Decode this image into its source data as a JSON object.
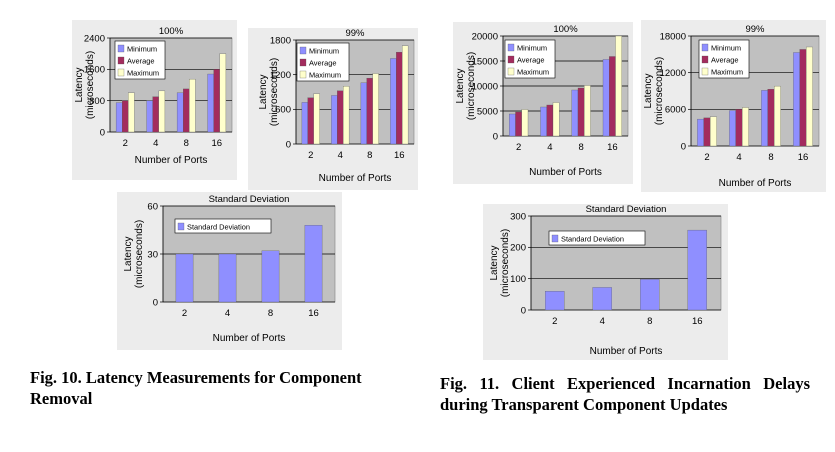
{
  "colors": {
    "plot_bg": "#c0c0c0",
    "outer_bg": "#ececec",
    "minimum": "#8f8fff",
    "average": "#a32c5e",
    "maximum": "#ffffcc",
    "stddev": "#8f8fff"
  },
  "captions": {
    "fig10": "Fig. 10. Latency Measurements for Component Removal",
    "fig11": "Fig. 11. Client Experienced Incarnation Delays during Transparent Component Updates"
  },
  "chart_data": [
    {
      "id": "fig10_100",
      "type": "bar",
      "title": "100%",
      "xlabel": "Number of Ports",
      "ylabel": "Latency (microseconds)",
      "ylabel_lines": [
        "Latency",
        "(microseconds)"
      ],
      "categories": [
        "2",
        "4",
        "8",
        "16"
      ],
      "ylim": [
        0,
        2400
      ],
      "yticks": [
        0,
        800,
        1600,
        2400
      ],
      "legend_position": "top-left",
      "series": [
        {
          "name": "Minimum",
          "values": [
            750,
            800,
            1000,
            1480
          ]
        },
        {
          "name": "Average",
          "values": [
            800,
            900,
            1100,
            1600
          ]
        },
        {
          "name": "Maximum",
          "values": [
            1000,
            1050,
            1350,
            2000
          ]
        }
      ]
    },
    {
      "id": "fig10_99",
      "type": "bar",
      "title": "99%",
      "xlabel": "Number of Ports",
      "ylabel": "Latency (microseconds)",
      "ylabel_lines": [
        "Latency",
        "(microseconds)"
      ],
      "categories": [
        "2",
        "4",
        "8",
        "16"
      ],
      "ylim": [
        0,
        1800
      ],
      "yticks": [
        0,
        600,
        1200,
        1800
      ],
      "legend_position": "top-left",
      "series": [
        {
          "name": "Minimum",
          "values": [
            720,
            840,
            1060,
            1480
          ]
        },
        {
          "name": "Average",
          "values": [
            800,
            920,
            1140,
            1590
          ]
        },
        {
          "name": "Maximum",
          "values": [
            870,
            1000,
            1220,
            1700
          ]
        }
      ]
    },
    {
      "id": "fig10_std",
      "type": "bar",
      "title": "Standard Deviation",
      "xlabel": "Number of Ports",
      "ylabel": "Latency (microseconds)",
      "ylabel_lines": [
        "Latency",
        "(microseconds)"
      ],
      "categories": [
        "2",
        "4",
        "8",
        "16"
      ],
      "ylim": [
        0,
        60
      ],
      "yticks": [
        0,
        30,
        60
      ],
      "legend_position": "top-left",
      "series": [
        {
          "name": "Standard Deviation",
          "values": [
            30,
            30,
            32,
            48
          ]
        }
      ]
    },
    {
      "id": "fig11_100",
      "type": "bar",
      "title": "100%",
      "xlabel": "Number of Ports",
      "ylabel": "Latency (microseconds)",
      "ylabel_lines": [
        "Latency",
        "(microseconds)"
      ],
      "categories": [
        "2",
        "4",
        "8",
        "16"
      ],
      "ylim": [
        0,
        20000
      ],
      "yticks": [
        0,
        5000,
        10000,
        15000,
        20000
      ],
      "legend_position": "top-left",
      "series": [
        {
          "name": "Minimum",
          "values": [
            4400,
            5800,
            9200,
            15300
          ]
        },
        {
          "name": "Average",
          "values": [
            4800,
            6200,
            9600,
            15900
          ]
        },
        {
          "name": "Maximum",
          "values": [
            5300,
            6700,
            10100,
            20000
          ]
        }
      ]
    },
    {
      "id": "fig11_99",
      "type": "bar",
      "title": "99%",
      "xlabel": "Number of Ports",
      "ylabel": "Latency (microseconds)",
      "ylabel_lines": [
        "Latency",
        "(microseconds)"
      ],
      "categories": [
        "2",
        "4",
        "8",
        "16"
      ],
      "ylim": [
        0,
        18000
      ],
      "yticks": [
        0,
        6000,
        12000,
        18000
      ],
      "legend_position": "top-left",
      "series": [
        {
          "name": "Minimum",
          "values": [
            4400,
            5800,
            9100,
            15300
          ]
        },
        {
          "name": "Average",
          "values": [
            4600,
            6000,
            9300,
            15800
          ]
        },
        {
          "name": "Maximum",
          "values": [
            4800,
            6300,
            9800,
            16200
          ]
        }
      ]
    },
    {
      "id": "fig11_std",
      "type": "bar",
      "title": "Standard Deviation",
      "xlabel": "Number of Ports",
      "ylabel": "Latency (microseconds)",
      "ylabel_lines": [
        "Latency",
        "(microseconds)"
      ],
      "categories": [
        "2",
        "4",
        "8",
        "16"
      ],
      "ylim": [
        0,
        300
      ],
      "yticks": [
        0,
        100,
        200,
        300
      ],
      "legend_position": "top-left",
      "series": [
        {
          "name": "Standard Deviation",
          "values": [
            60,
            72,
            98,
            255
          ]
        }
      ]
    }
  ]
}
